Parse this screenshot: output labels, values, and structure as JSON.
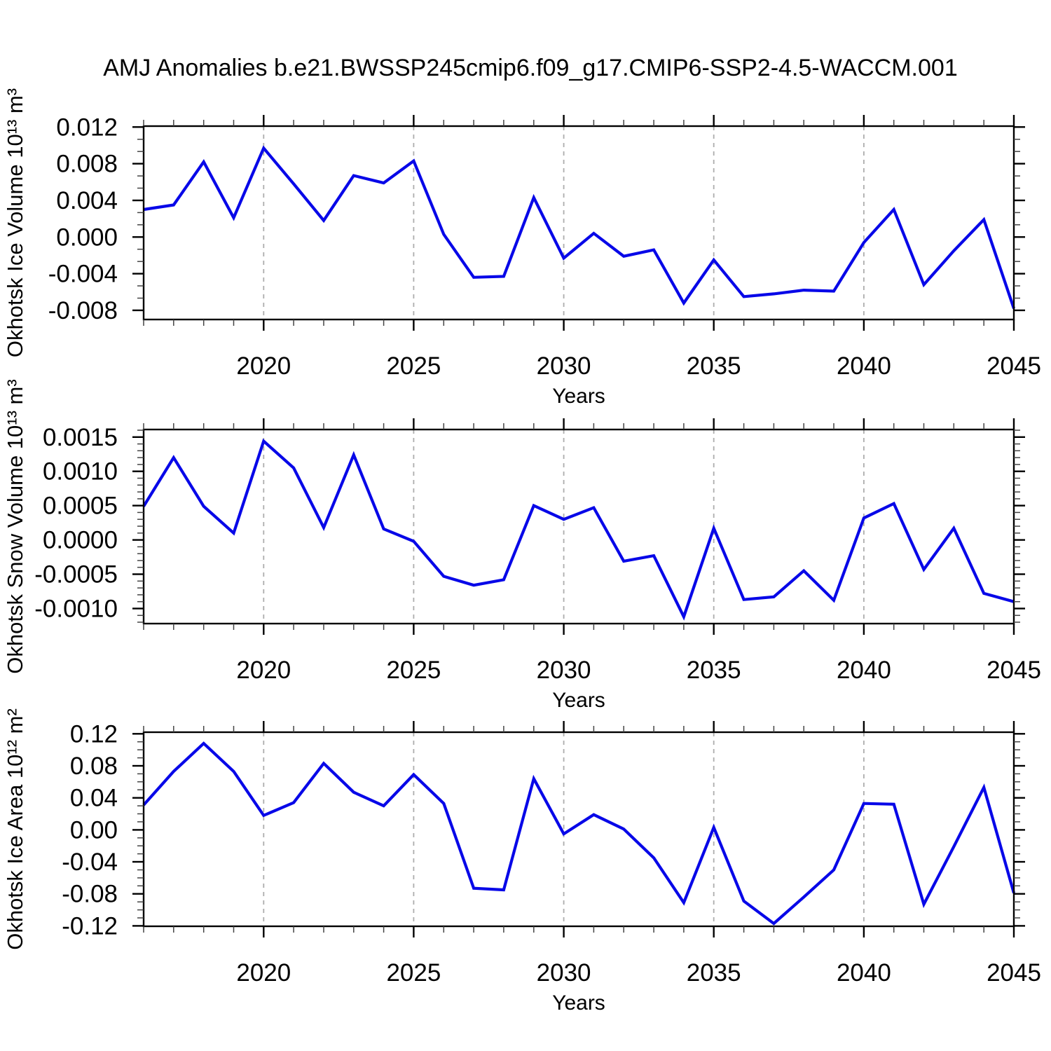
{
  "title": "AMJ Anomalies b.e21.BWSSP245cmip6.f09_g17.CMIP6-SSP2-4.5-WACCM.001",
  "colors": {
    "line": "#0808e8",
    "grid": "#adadad",
    "axis": "#000000",
    "minor_tick": "#444444",
    "background": "#ffffff"
  },
  "x_axis": {
    "label": "Years",
    "min": 2016,
    "max": 2045,
    "major_ticks": [
      2020,
      2025,
      2030,
      2035,
      2040,
      2045
    ],
    "tick_labels": [
      "2020",
      "2025",
      "2030",
      "2035",
      "2040",
      "2045"
    ],
    "minor_step": 1,
    "gridlines": [
      2020,
      2025,
      2030,
      2035,
      2040
    ]
  },
  "chart_data": [
    {
      "type": "line",
      "name": "okhotsk-ice-volume",
      "ylabel": "Okhotsk Ice Volume 10¹³ m³",
      "xlabel": "Years",
      "x": [
        2016,
        2017,
        2018,
        2019,
        2020,
        2021,
        2022,
        2023,
        2024,
        2025,
        2026,
        2027,
        2028,
        2029,
        2030,
        2031,
        2032,
        2033,
        2034,
        2035,
        2036,
        2037,
        2038,
        2039,
        2040,
        2041,
        2042,
        2043,
        2044,
        2045
      ],
      "values": [
        0.003,
        0.0035,
        0.0082,
        0.0021,
        0.0097,
        0.0058,
        0.0018,
        0.0067,
        0.0059,
        0.0083,
        0.0003,
        -0.0044,
        -0.0043,
        0.0043,
        -0.0023,
        0.0004,
        -0.0021,
        -0.0014,
        -0.0072,
        -0.0025,
        -0.0065,
        -0.0062,
        -0.0058,
        -0.0059,
        -0.0006,
        0.003,
        -0.0052,
        -0.0015,
        0.0019,
        -0.0078
      ],
      "ylim": [
        -0.009,
        0.0121
      ],
      "yticks": [
        0.012,
        0.008,
        0.004,
        0.0,
        -0.004,
        -0.008
      ],
      "ytick_labels": [
        "0.012",
        "0.008",
        "0.004",
        "0.000",
        "-0.004",
        "-0.008"
      ],
      "y_minor_step": 0.0013333,
      "grid": "x-dashed",
      "legend": "none"
    },
    {
      "type": "line",
      "name": "okhotsk-snow-volume",
      "ylabel": "Okhotsk Snow Volume 10¹³ m³",
      "xlabel": "Years",
      "x": [
        2016,
        2017,
        2018,
        2019,
        2020,
        2021,
        2022,
        2023,
        2024,
        2025,
        2026,
        2027,
        2028,
        2029,
        2030,
        2031,
        2032,
        2033,
        2034,
        2035,
        2036,
        2037,
        2038,
        2039,
        2040,
        2041,
        2042,
        2043,
        2044,
        2045
      ],
      "values": [
        0.00049,
        0.0012,
        0.00049,
        0.0001,
        0.00144,
        0.00105,
        0.00018,
        0.00124,
        0.00016,
        -2e-05,
        -0.00053,
        -0.00066,
        -0.00058,
        0.0005,
        0.0003,
        0.00047,
        -0.00031,
        -0.00023,
        -0.00112,
        0.00017,
        -0.00087,
        -0.00083,
        -0.00045,
        -0.00088,
        0.00032,
        0.00053,
        -0.00043,
        0.00017,
        -0.00078,
        -0.0009
      ],
      "ylim": [
        -0.00122,
        0.00161
      ],
      "yticks": [
        0.0015,
        0.001,
        0.0005,
        0.0,
        -0.0005,
        -0.001
      ],
      "ytick_labels": [
        "0.0015",
        "0.0010",
        "0.0005",
        "0.0000",
        "-0.0005",
        "-0.0010"
      ],
      "y_minor_step": 0.0001,
      "grid": "x-dashed",
      "legend": "none"
    },
    {
      "type": "line",
      "name": "okhotsk-ice-area",
      "ylabel": "Okhotsk Ice Area 10¹² m²",
      "xlabel": "Years",
      "x": [
        2016,
        2017,
        2018,
        2019,
        2020,
        2021,
        2022,
        2023,
        2024,
        2025,
        2026,
        2027,
        2028,
        2029,
        2030,
        2031,
        2032,
        2033,
        2034,
        2035,
        2036,
        2037,
        2038,
        2039,
        2040,
        2041,
        2042,
        2043,
        2044,
        2045
      ],
      "values": [
        0.031,
        0.073,
        0.108,
        0.073,
        0.018,
        0.034,
        0.083,
        0.047,
        0.03,
        0.069,
        0.033,
        -0.073,
        -0.075,
        0.064,
        -0.005,
        0.019,
        0.001,
        -0.035,
        -0.091,
        0.003,
        -0.089,
        -0.117,
        -0.084,
        -0.05,
        0.033,
        0.032,
        -0.093,
        -0.021,
        0.053,
        -0.079
      ],
      "ylim": [
        -0.1205,
        0.122
      ],
      "yticks": [
        0.12,
        0.08,
        0.04,
        0.0,
        -0.04,
        -0.08,
        -0.12
      ],
      "ytick_labels": [
        "0.12",
        "0.08",
        "0.04",
        "0.00",
        "-0.04",
        "-0.08",
        "-0.12"
      ],
      "y_minor_step": 0.01,
      "grid": "x-dashed",
      "legend": "none"
    }
  ]
}
